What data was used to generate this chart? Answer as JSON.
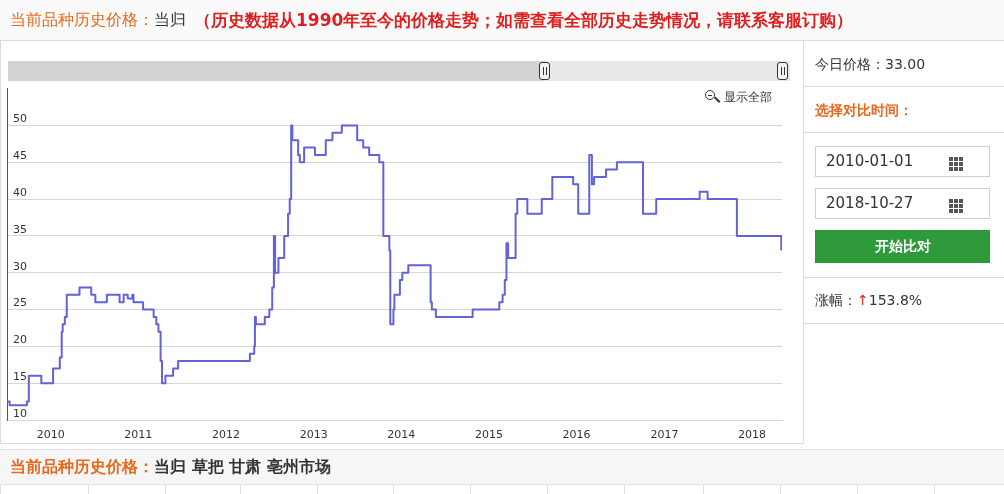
{
  "chart_data": {
    "type": "step",
    "title": "当前品种历史价格：当归",
    "subtitle": "（历史数据从1990年至今的价格走势；如需查看全部历史走势情况，请联系客服订购）",
    "x": [
      "2009-07-03",
      "2009-07-14",
      "2009-09-24",
      "2009-10-02",
      "2009-11-23",
      "2010-01-11",
      "2010-02-08",
      "2010-02-16",
      "2010-02-20",
      "2010-03-01",
      "2010-03-09",
      "2010-05-01",
      "2010-06-19",
      "2010-07-06",
      "2010-08-23",
      "2010-10-15",
      "2010-11-01",
      "2010-11-18",
      "2010-12-07",
      "2010-12-12",
      "2011-01-21",
      "2011-03-06",
      "2011-03-17",
      "2011-03-26",
      "2011-04-04",
      "2011-04-10",
      "2011-04-24",
      "2011-05-26",
      "2011-06-16",
      "2012-04-10",
      "2012-04-28",
      "2012-05-01",
      "2012-05-05",
      "2012-06-11",
      "2012-06-30",
      "2012-07-12",
      "2012-07-19",
      "2012-07-24",
      "2012-08-07",
      "2012-08-31",
      "2012-09-16",
      "2012-09-23",
      "2012-09-29",
      "2012-10-04",
      "2012-10-28",
      "2012-11-04",
      "2012-11-22",
      "2013-01-06",
      "2013-02-20",
      "2013-03-20",
      "2013-04-28",
      "2013-07-01",
      "2013-07-26",
      "2013-08-20",
      "2013-10-01",
      "2013-10-18",
      "2013-11-12",
      "2013-11-16",
      "2013-11-29",
      "2013-12-03",
      "2013-12-26",
      "2014-01-05",
      "2014-01-30",
      "2014-05-03",
      "2014-05-08",
      "2014-05-25",
      "2014-10-25",
      "2015-02-13",
      "2015-02-27",
      "2015-03-08",
      "2015-03-15",
      "2015-03-22",
      "2015-04-22",
      "2015-04-29",
      "2015-06-10",
      "2015-08-09",
      "2015-09-22",
      "2015-12-18",
      "2016-01-08",
      "2016-02-23",
      "2016-03-05",
      "2016-03-14",
      "2016-05-03",
      "2016-06-17",
      "2016-10-04",
      "2016-11-28",
      "2017-05-28",
      "2017-06-30",
      "2017-10-30",
      "2018-05-03"
    ],
    "series": [
      {
        "color": "#6262d9",
        "values": [
          12.5,
          12,
          12.5,
          16,
          15,
          17,
          18.5,
          22,
          23,
          24,
          27,
          28,
          27,
          26,
          27,
          26,
          27,
          26.5,
          27,
          26,
          25,
          24,
          23,
          22,
          18,
          15,
          16,
          17,
          18,
          19,
          20,
          24,
          23,
          24,
          25,
          28,
          35,
          30,
          32,
          35,
          38,
          40,
          50,
          48,
          46,
          45,
          47,
          46,
          48,
          49,
          50,
          48,
          47,
          46,
          45,
          35,
          33,
          23,
          25,
          27,
          29,
          30,
          31,
          26,
          25,
          24,
          25,
          26,
          27,
          29,
          34,
          32,
          38,
          40,
          38,
          40,
          43,
          42,
          38,
          46,
          42,
          43,
          44,
          45,
          38,
          40,
          41,
          40,
          35,
          33
        ]
      }
    ],
    "xlim": [
      "2009-07-03",
      "2018-05-06"
    ],
    "xticks": [
      "2010",
      "2011",
      "2012",
      "2013",
      "2014",
      "2015",
      "2016",
      "2017",
      "2018"
    ],
    "ylim": [
      10,
      55
    ],
    "yticks": [
      10,
      15,
      20,
      25,
      30,
      35,
      40,
      45,
      50
    ],
    "grid": "y",
    "marker": "none",
    "annotations": [
      "显示全部",
      "今日价格：33.00",
      "选择对比时间：",
      "2010-01-01",
      "2018-10-27",
      "开始比对",
      "涨幅：↑153.8%",
      "当前品种历史价格：当归 草把 甘肃 亳州市场"
    ]
  }
}
